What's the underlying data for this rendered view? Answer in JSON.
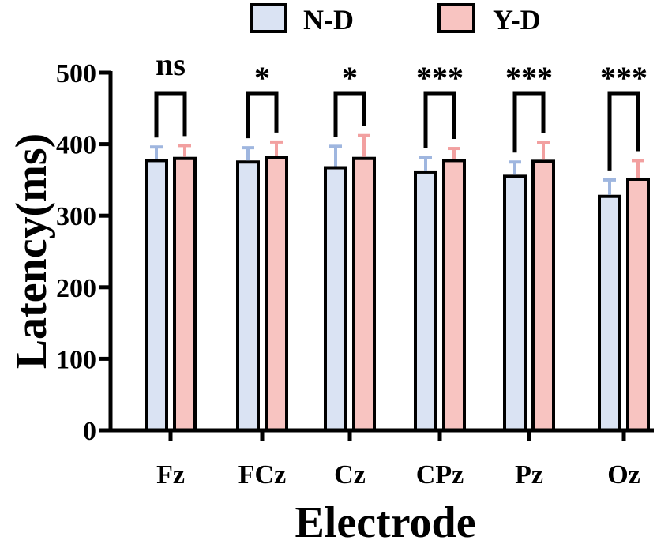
{
  "chart_data": {
    "type": "bar",
    "xlabel": "Electrode",
    "ylabel": "Latency(ms)",
    "ylim": [
      0,
      500
    ],
    "yticks": [
      "0",
      "100",
      "200",
      "300",
      "400",
      "500"
    ],
    "categories": [
      "Fz",
      "FCz",
      "Cz",
      "CPz",
      "Pz",
      "Oz"
    ],
    "legend_position": "top",
    "series": [
      {
        "name": "N-D",
        "fill": "#dae3f3",
        "errcolor": "#9fb6df",
        "values": [
          377,
          375,
          367,
          361,
          355,
          327
        ],
        "errors": [
          19,
          20,
          30,
          20,
          20,
          23
        ]
      },
      {
        "name": "Y-D",
        "fill": "#f8c4c1",
        "errcolor": "#f2a0a0",
        "values": [
          380,
          381,
          380,
          377,
          376,
          351
        ],
        "errors": [
          18,
          22,
          32,
          17,
          26,
          26
        ]
      }
    ],
    "significance": [
      "ns",
      "*",
      "*",
      "***",
      "***",
      "***"
    ]
  }
}
